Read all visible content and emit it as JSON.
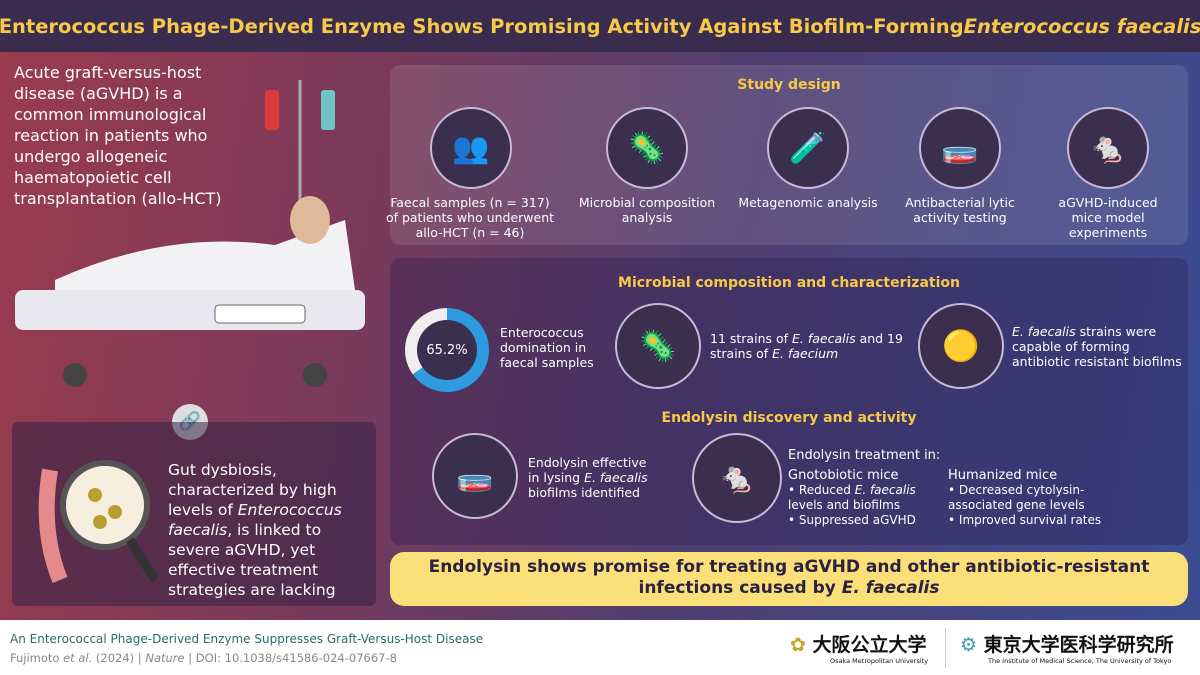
{
  "title": {
    "main": "Enterococcus Phage-Derived Enzyme Shows Promising Activity Against Biofilm-Forming ",
    "italic": "Enterococcus faecalis"
  },
  "intro": "Acute graft-versus-host disease (aGVHD) is a common immunological reaction in patients who undergo allogeneic haematopoietic cell transplantation (allo-HCT)",
  "gut": {
    "a": "Gut dysbiosis, characterized by high levels of ",
    "i": "Enterococcus faecalis",
    "b": ", is linked to severe aGVHD, yet effective treatment strategies are lacking"
  },
  "study": {
    "title": "Study design",
    "steps": [
      "Faecal samples (n = 317) of patients who underwent allo-HCT (n = 46)",
      "Microbial composition analysis",
      "Metagenomic analysis",
      "Antibacterial lytic activity testing",
      "aGVHD-induced mice model experiments"
    ]
  },
  "micro": {
    "title": "Microbial composition and characterization",
    "percent": "65.2%",
    "percent_value": 65.2,
    "dom": "Enterococcus domination in faecal samples",
    "strains": {
      "a": "11 strains of ",
      "i1": "E. faecalis",
      "b": " and 19 strains of ",
      "i2": "E. faecium"
    },
    "biofilm": {
      "i": "E. faecalis",
      "b": " strains were capable of forming antibiotic resistant biofilms"
    }
  },
  "endo": {
    "title": "Endolysin discovery and activity",
    "lysing": {
      "a": "Endolysin effective in lysing ",
      "i": "E. faecalis",
      "b": " biofilms identified"
    },
    "treat": "Endolysin treatment in:",
    "gnoto": "Gnotobiotic mice",
    "g1a": "Reduced ",
    "g1i": "E. faecalis",
    "g1b": " levels and biofilms",
    "g2": "Suppressed aGVHD",
    "human": "Humanized mice",
    "h1": "Decreased cytolysin-associated gene levels",
    "h2": "Improved survival rates"
  },
  "banner": {
    "a": "Endolysin shows promise for treating aGVHD and other antibiotic-resistant infections caused by ",
    "i": "E. faecalis"
  },
  "footer": {
    "paper": "An Enterococcal Phage-Derived Enzyme Suppresses Graft-Versus-Host Disease",
    "author": "Fujimoto ",
    "etal": "et al.",
    "year": " (2024) | ",
    "journal": "Nature",
    "doi": " | DOI: 10.1038/s41586-024-07667-8"
  },
  "logos": {
    "omu": "大阪公立大学",
    "omu_en": "Osaka Metropolitan University",
    "ims": "東京大学医科学研究所",
    "ims_en": "The Institute of Medical Science, The University of Tokyo"
  },
  "colors": {
    "accent": "#f7c948",
    "banner": "#fbe07a",
    "titlebar": "#3a2c4e"
  }
}
